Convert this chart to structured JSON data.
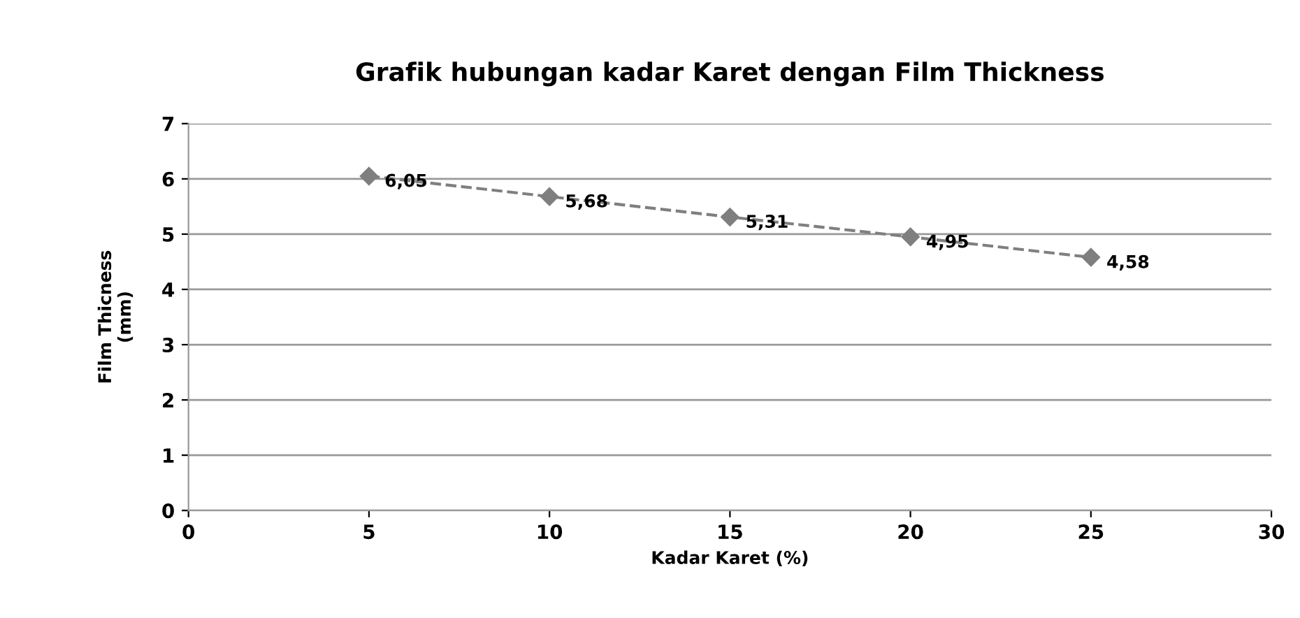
{
  "chart_data": {
    "type": "line",
    "title": "Grafik hubungan kadar Karet dengan Film Thickness",
    "xlabel": "Kadar Karet (%)",
    "ylabel": "Film Thicness\n(mm)",
    "x": [
      5,
      10,
      15,
      20,
      25
    ],
    "series": [
      {
        "color": "#7f7f7f",
        "values": [
          6.05,
          5.68,
          5.31,
          4.95,
          4.58
        ]
      }
    ],
    "value_labels": [
      "6,05",
      "5,68",
      "5,31",
      "4,95",
      "4,58"
    ],
    "xlim": [
      0,
      30
    ],
    "xticks": [
      0,
      5,
      10,
      15,
      20,
      25,
      30
    ],
    "ylim": [
      0,
      7
    ],
    "yticks": [
      0,
      1,
      2,
      3,
      4,
      5,
      6,
      7
    ],
    "grid": "y",
    "legend": false,
    "marker": "diamond",
    "line_style": "dashed"
  }
}
